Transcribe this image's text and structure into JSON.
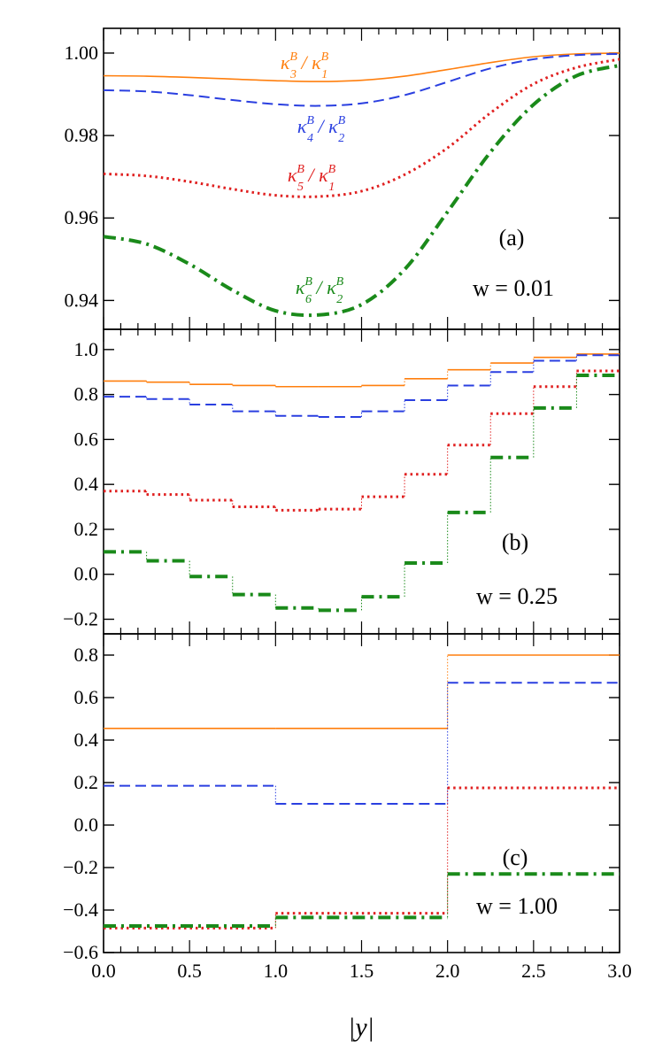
{
  "colors": {
    "orange": "#ff7f0e",
    "blue": "#2a3fe0",
    "red": "#e02020",
    "green": "#1a8a1a"
  },
  "chart_data": {
    "type": "line",
    "xlabel": "|y|",
    "xlim": [
      0.0,
      3.0
    ],
    "xticks": [
      "0.0",
      "0.5",
      "1.0",
      "1.5",
      "2.0",
      "2.5",
      "3.0"
    ],
    "shared_x_axis": true,
    "panels": [
      {
        "tag": "(a)",
        "w_label": "w = 0.01",
        "kind": "smooth",
        "ylim": [
          0.933,
          1.006
        ],
        "yticks": [
          "0.94",
          "0.96",
          "0.98",
          "1.00"
        ],
        "series": [
          {
            "name": "κ3B / κ1B",
            "num": "κ",
            "num_sub": "3",
            "den": "κ",
            "den_sub": "1",
            "sup": "B",
            "color": "orange",
            "style": "solid",
            "x": [
              0.0,
              0.25,
              0.5,
              0.75,
              1.0,
              1.25,
              1.5,
              1.75,
              2.0,
              2.25,
              2.5,
              2.75,
              3.0
            ],
            "y": [
              0.9945,
              0.9944,
              0.9941,
              0.9937,
              0.9933,
              0.9931,
              0.9934,
              0.9944,
              0.996,
              0.9977,
              0.9991,
              0.9998,
              1.0
            ]
          },
          {
            "name": "κ4B / κ2B",
            "num": "κ",
            "num_sub": "4",
            "den": "κ",
            "den_sub": "2",
            "sup": "B",
            "color": "blue",
            "style": "dashed",
            "x": [
              0.0,
              0.25,
              0.5,
              0.75,
              1.0,
              1.25,
              1.5,
              1.75,
              2.0,
              2.25,
              2.5,
              2.75,
              3.0
            ],
            "y": [
              0.991,
              0.9907,
              0.9898,
              0.9886,
              0.9876,
              0.9872,
              0.9878,
              0.9898,
              0.993,
              0.9963,
              0.9985,
              0.9995,
              0.9998
            ]
          },
          {
            "name": "κ5B / κ1B",
            "num": "κ",
            "num_sub": "5",
            "den": "κ",
            "den_sub": "1",
            "sup": "B",
            "color": "red",
            "style": "dotted",
            "x": [
              0.0,
              0.25,
              0.5,
              0.75,
              1.0,
              1.25,
              1.5,
              1.75,
              2.0,
              2.25,
              2.5,
              2.75,
              3.0
            ],
            "y": [
              0.9707,
              0.9702,
              0.9688,
              0.967,
              0.9655,
              0.9652,
              0.9665,
              0.9705,
              0.977,
              0.9855,
              0.9925,
              0.9965,
              0.9985
            ]
          },
          {
            "name": "κ6B / κ2B",
            "num": "κ",
            "num_sub": "6",
            "den": "κ",
            "den_sub": "2",
            "sup": "B",
            "color": "green",
            "style": "dashdot",
            "x": [
              0.0,
              0.25,
              0.5,
              0.75,
              1.0,
              1.25,
              1.5,
              1.75,
              2.0,
              2.25,
              2.5,
              2.75,
              3.0
            ],
            "y": [
              0.9555,
              0.9537,
              0.9488,
              0.9425,
              0.9375,
              0.9365,
              0.939,
              0.9475,
              0.9615,
              0.976,
              0.9875,
              0.9945,
              0.997
            ]
          }
        ]
      },
      {
        "tag": "(b)",
        "w_label": "w = 0.25",
        "kind": "step",
        "ylim": [
          -0.265,
          1.09
        ],
        "yticks": [
          "−0.2",
          "0.0",
          "0.2",
          "0.4",
          "0.6",
          "0.8",
          "1.0"
        ],
        "bin_edges": [
          0.0,
          0.25,
          0.5,
          0.75,
          1.0,
          1.25,
          1.5,
          1.75,
          2.0,
          2.25,
          2.5,
          2.75,
          3.0
        ],
        "series": [
          {
            "name": "κ3B / κ1B",
            "color": "orange",
            "style": "solid",
            "values": [
              0.86,
              0.855,
              0.845,
              0.84,
              0.835,
              0.835,
              0.84,
              0.87,
              0.91,
              0.94,
              0.965,
              0.98
            ]
          },
          {
            "name": "κ4B / κ2B",
            "color": "blue",
            "style": "dashed",
            "values": [
              0.79,
              0.78,
              0.755,
              0.725,
              0.705,
              0.7,
              0.725,
              0.775,
              0.84,
              0.9,
              0.95,
              0.975
            ]
          },
          {
            "name": "κ5B / κ1B",
            "color": "red",
            "style": "dotted",
            "values": [
              0.37,
              0.355,
              0.33,
              0.3,
              0.285,
              0.29,
              0.345,
              0.445,
              0.575,
              0.715,
              0.835,
              0.905
            ]
          },
          {
            "name": "κ6B / κ2B",
            "color": "green",
            "style": "dashdot",
            "values": [
              0.1,
              0.06,
              -0.01,
              -0.09,
              -0.15,
              -0.16,
              -0.1,
              0.05,
              0.275,
              0.52,
              0.74,
              0.885
            ]
          }
        ]
      },
      {
        "tag": "(c)",
        "w_label": "w = 1.00",
        "kind": "step",
        "ylim": [
          -0.6,
          0.9
        ],
        "yticks": [
          "−0.6",
          "−0.4",
          "−0.2",
          "0.0",
          "0.2",
          "0.4",
          "0.6",
          "0.8"
        ],
        "bin_edges": [
          0.0,
          1.0,
          2.0,
          3.0
        ],
        "series": [
          {
            "name": "κ3B / κ1B",
            "color": "orange",
            "style": "solid",
            "values": [
              0.455,
              0.455,
              0.8
            ]
          },
          {
            "name": "κ4B / κ2B",
            "color": "blue",
            "style": "dashed",
            "values": [
              0.185,
              0.1,
              0.67
            ]
          },
          {
            "name": "κ5B / κ1B",
            "color": "red",
            "style": "dotted",
            "values": [
              -0.485,
              -0.415,
              0.175
            ]
          },
          {
            "name": "κ6B / κ2B",
            "color": "green",
            "style": "dashdot",
            "values": [
              -0.475,
              -0.435,
              -0.23
            ]
          }
        ]
      }
    ]
  }
}
